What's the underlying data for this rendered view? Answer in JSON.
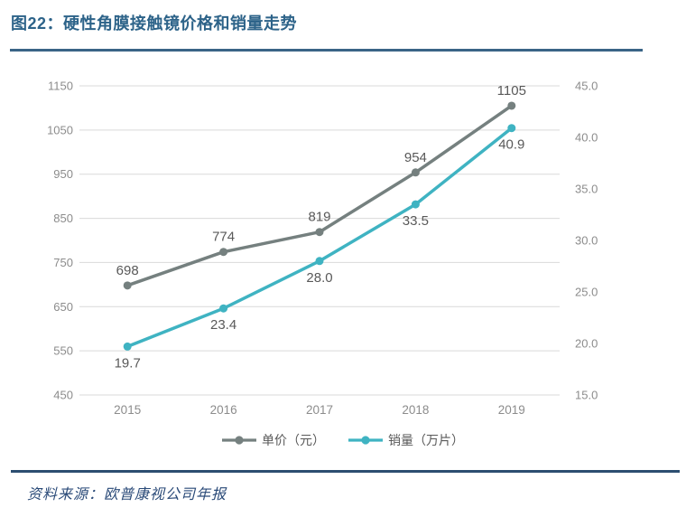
{
  "header": {
    "title": "图22：硬性角膜接触镜价格和销量走势"
  },
  "chart_data": {
    "type": "line",
    "categories": [
      "2015",
      "2016",
      "2017",
      "2018",
      "2019"
    ],
    "series": [
      {
        "name": "单价（元）",
        "values": [
          698,
          774,
          819,
          954,
          1105
        ],
        "labels": [
          "698",
          "774",
          "819",
          "954",
          "1105"
        ],
        "color": "#75807F",
        "axis": "left",
        "label_position": "above"
      },
      {
        "name": "销量（万片）",
        "values": [
          19.7,
          23.4,
          28.0,
          33.5,
          40.9
        ],
        "labels": [
          "19.7",
          "23.4",
          "28.0",
          "33.5",
          "40.9"
        ],
        "color": "#3FB3C2",
        "axis": "right",
        "label_position": "below"
      }
    ],
    "left_axis": {
      "min": 450,
      "max": 1150,
      "ticks": [
        "1150",
        "1050",
        "950",
        "850",
        "750",
        "650",
        "550",
        "450"
      ]
    },
    "right_axis": {
      "min": 15,
      "max": 45,
      "ticks": [
        "45.0",
        "40.0",
        "35.0",
        "30.0",
        "25.0",
        "20.0",
        "15.0"
      ]
    },
    "grid": true,
    "legend_position": "bottom"
  },
  "footer": {
    "source": "资料来源：欧普康视公司年报"
  },
  "colors": {
    "title_text": "#2D6389",
    "title_rule": "#3A6486",
    "footer_rule": "#2C4E70",
    "source_text": "#2A4A78",
    "grid_line": "#D9D9D9",
    "axis_label": "#8C8C8C",
    "value_label": "#595959",
    "price_series": "#75807F",
    "volume_series": "#3FB3C2"
  }
}
